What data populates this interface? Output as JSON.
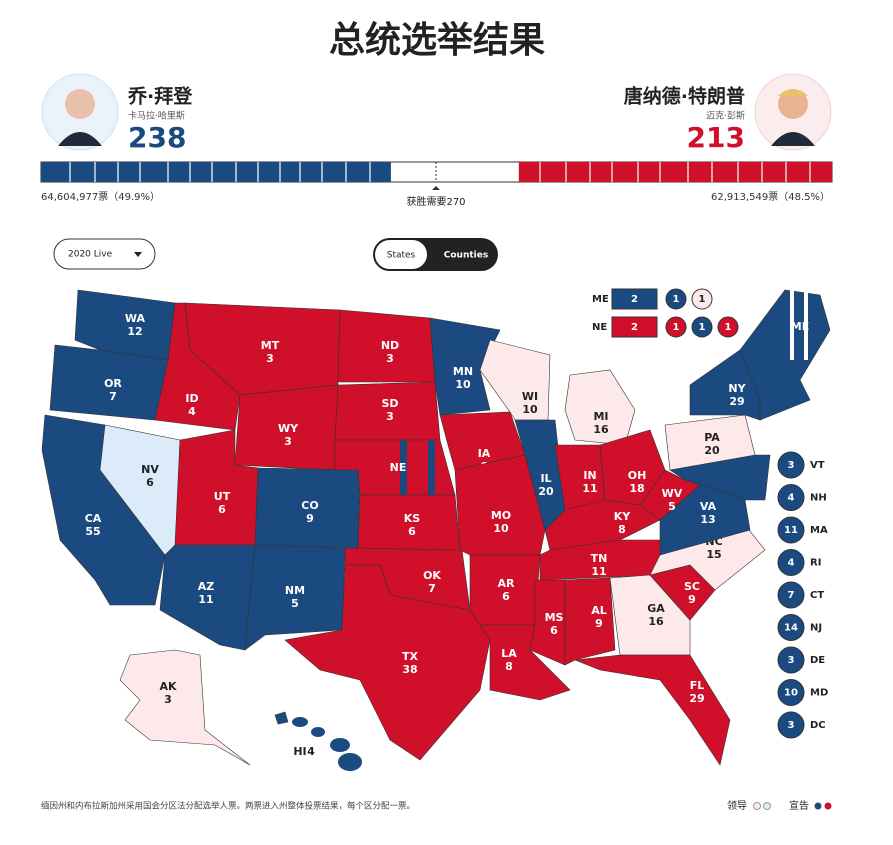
{
  "header": {
    "title": "总统选举结果"
  },
  "candidates": [
    {
      "name": "乔·拜登",
      "running_mate": "卡马拉·哈里斯",
      "electoral_votes": 238,
      "popular_vote": "64,604,977票（49.9%）",
      "party": "D"
    },
    {
      "name": "唐纳德·特朗普",
      "running_mate": "迈克·彭斯",
      "electoral_votes": 213,
      "popular_vote": "62,913,549票（48.5%）",
      "party": "R"
    }
  ],
  "win_threshold": "获胜需要270",
  "controls": {
    "dropdown": "2020 Live",
    "toggle": [
      "States",
      "Counties"
    ]
  },
  "map_states": [
    {
      "abbr": "WA",
      "votes": 12,
      "party": "D",
      "called": true
    },
    {
      "abbr": "OR",
      "votes": 7,
      "party": "D",
      "called": true
    },
    {
      "abbr": "CA",
      "votes": 55,
      "party": "D",
      "called": true
    },
    {
      "abbr": "NV",
      "votes": 6,
      "party": "D",
      "called": false
    },
    {
      "abbr": "ID",
      "votes": 4,
      "party": "R",
      "called": true
    },
    {
      "abbr": "MT",
      "votes": 3,
      "party": "R",
      "called": true
    },
    {
      "abbr": "WY",
      "votes": 3,
      "party": "R",
      "called": true
    },
    {
      "abbr": "UT",
      "votes": 6,
      "party": "R",
      "called": true
    },
    {
      "abbr": "CO",
      "votes": 9,
      "party": "D",
      "called": true
    },
    {
      "abbr": "AZ",
      "votes": 11,
      "party": "D",
      "called": true
    },
    {
      "abbr": "NM",
      "votes": 5,
      "party": "D",
      "called": true
    },
    {
      "abbr": "ND",
      "votes": 3,
      "party": "R",
      "called": true
    },
    {
      "abbr": "SD",
      "votes": 3,
      "party": "R",
      "called": true
    },
    {
      "abbr": "NE",
      "party": "R",
      "called": true
    },
    {
      "abbr": "KS",
      "votes": 6,
      "party": "R",
      "called": true
    },
    {
      "abbr": "OK",
      "votes": 7,
      "party": "R",
      "called": true
    },
    {
      "abbr": "TX",
      "votes": 38,
      "party": "R",
      "called": true
    },
    {
      "abbr": "MN",
      "votes": 10,
      "party": "D",
      "called": true
    },
    {
      "abbr": "IA",
      "votes": 6,
      "party": "R",
      "called": true
    },
    {
      "abbr": "MO",
      "votes": 10,
      "party": "R",
      "called": true
    },
    {
      "abbr": "AR",
      "votes": 6,
      "party": "R",
      "called": true
    },
    {
      "abbr": "LA",
      "votes": 8,
      "party": "R",
      "called": true
    },
    {
      "abbr": "WI",
      "votes": 10,
      "party": "R",
      "called": false
    },
    {
      "abbr": "IL",
      "votes": 20,
      "party": "D",
      "called": true
    },
    {
      "abbr": "MI",
      "votes": 16,
      "party": "R",
      "called": false
    },
    {
      "abbr": "IN",
      "votes": 11,
      "party": "R",
      "called": true
    },
    {
      "abbr": "OH",
      "votes": 18,
      "party": "R",
      "called": true
    },
    {
      "abbr": "KY",
      "votes": 8,
      "party": "R",
      "called": true
    },
    {
      "abbr": "TN",
      "votes": 11,
      "party": "R",
      "called": true
    },
    {
      "abbr": "MS",
      "votes": 6,
      "party": "R",
      "called": true
    },
    {
      "abbr": "AL",
      "votes": 9,
      "party": "R",
      "called": true
    },
    {
      "abbr": "GA",
      "votes": 16,
      "party": "R",
      "called": false
    },
    {
      "abbr": "FL",
      "votes": 29,
      "party": "R",
      "called": true
    },
    {
      "abbr": "SC",
      "votes": 9,
      "party": "R",
      "called": true
    },
    {
      "abbr": "NC",
      "votes": 15,
      "party": "R",
      "called": false
    },
    {
      "abbr": "VA",
      "votes": 13,
      "party": "D",
      "called": true
    },
    {
      "abbr": "WV",
      "votes": 5,
      "party": "R",
      "called": true
    },
    {
      "abbr": "PA",
      "votes": 20,
      "party": "R",
      "called": false
    },
    {
      "abbr": "NY",
      "votes": 29,
      "party": "D",
      "called": true
    },
    {
      "abbr": "ME",
      "party": "D",
      "called": true
    },
    {
      "abbr": "AK",
      "votes": 3,
      "party": "R",
      "called": false
    },
    {
      "abbr": "HI",
      "votes": 4,
      "party": "D",
      "called": true
    }
  ],
  "district_splits": [
    {
      "state": "ME",
      "units": [
        {
          "votes": 2,
          "party": "D",
          "called": true
        },
        {
          "votes": 1,
          "party": "D",
          "called": true
        },
        {
          "votes": 1,
          "party": "R",
          "called": false
        }
      ]
    },
    {
      "state": "NE",
      "units": [
        {
          "votes": 2,
          "party": "R",
          "called": true
        },
        {
          "votes": 1,
          "party": "R",
          "called": true
        },
        {
          "votes": 1,
          "party": "D",
          "called": true
        },
        {
          "votes": 1,
          "party": "R",
          "called": true
        }
      ]
    }
  ],
  "small_states": [
    {
      "abbr": "VT",
      "votes": 3,
      "party": "D"
    },
    {
      "abbr": "NH",
      "votes": 4,
      "party": "D"
    },
    {
      "abbr": "MA",
      "votes": 11,
      "party": "D"
    },
    {
      "abbr": "RI",
      "votes": 4,
      "party": "D"
    },
    {
      "abbr": "CT",
      "votes": 7,
      "party": "D"
    },
    {
      "abbr": "NJ",
      "votes": 14,
      "party": "D"
    },
    {
      "abbr": "DE",
      "votes": 3,
      "party": "D"
    },
    {
      "abbr": "MD",
      "votes": 10,
      "party": "D"
    },
    {
      "abbr": "DC",
      "votes": 3,
      "party": "D"
    }
  ],
  "footnote": "缅因州和内布拉斯加州采用国会分区法分配选举人票。两票进入州整体投票结果，每个区分配一票。",
  "legend": {
    "leading": "领导",
    "called": "宣告"
  }
}
